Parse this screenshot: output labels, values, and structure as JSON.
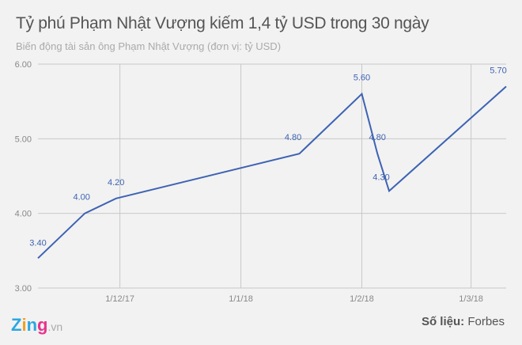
{
  "chart_data": {
    "type": "line",
    "title": "Tỷ phú Phạm Nhật Vượng kiếm 1,4 tỷ USD trong 30 ngày",
    "subtitle": "Biến động tài sản ông Phạm Nhật Vượng (đơn vị: tỷ USD)",
    "xlabel": "",
    "ylabel": "",
    "x": [
      "2017-11-10",
      "2017-11-22",
      "2017-11-30",
      "2018-01-16",
      "2018-02-01",
      "2018-02-05",
      "2018-02-08",
      "2018-03-10"
    ],
    "values": [
      3.4,
      4.0,
      4.2,
      4.8,
      5.6,
      4.8,
      4.3,
      5.7
    ],
    "data_labels": [
      "3.40",
      "4.00",
      "4.20",
      "4.80",
      "5.60",
      "4.80",
      "4.30",
      "5.70"
    ],
    "ylim": [
      3.0,
      6.0
    ],
    "xlim": [
      "2017-11-10",
      "2018-03-10"
    ],
    "y_ticks": [
      "3.00",
      "4.00",
      "5.00",
      "6.00"
    ],
    "x_ticks": [
      {
        "date": "2017-12-01",
        "label": "1/12/17"
      },
      {
        "date": "2018-01-01",
        "label": "1/1/18"
      },
      {
        "date": "2018-02-01",
        "label": "1/2/18"
      },
      {
        "date": "2018-03-01",
        "label": "1/3/18"
      }
    ],
    "grid": true,
    "line_color": "#3d63b3"
  },
  "footer": {
    "logo": "Zing",
    "logo_suffix": ".vn",
    "source_label": "Số liệu:",
    "source": "Forbes"
  }
}
